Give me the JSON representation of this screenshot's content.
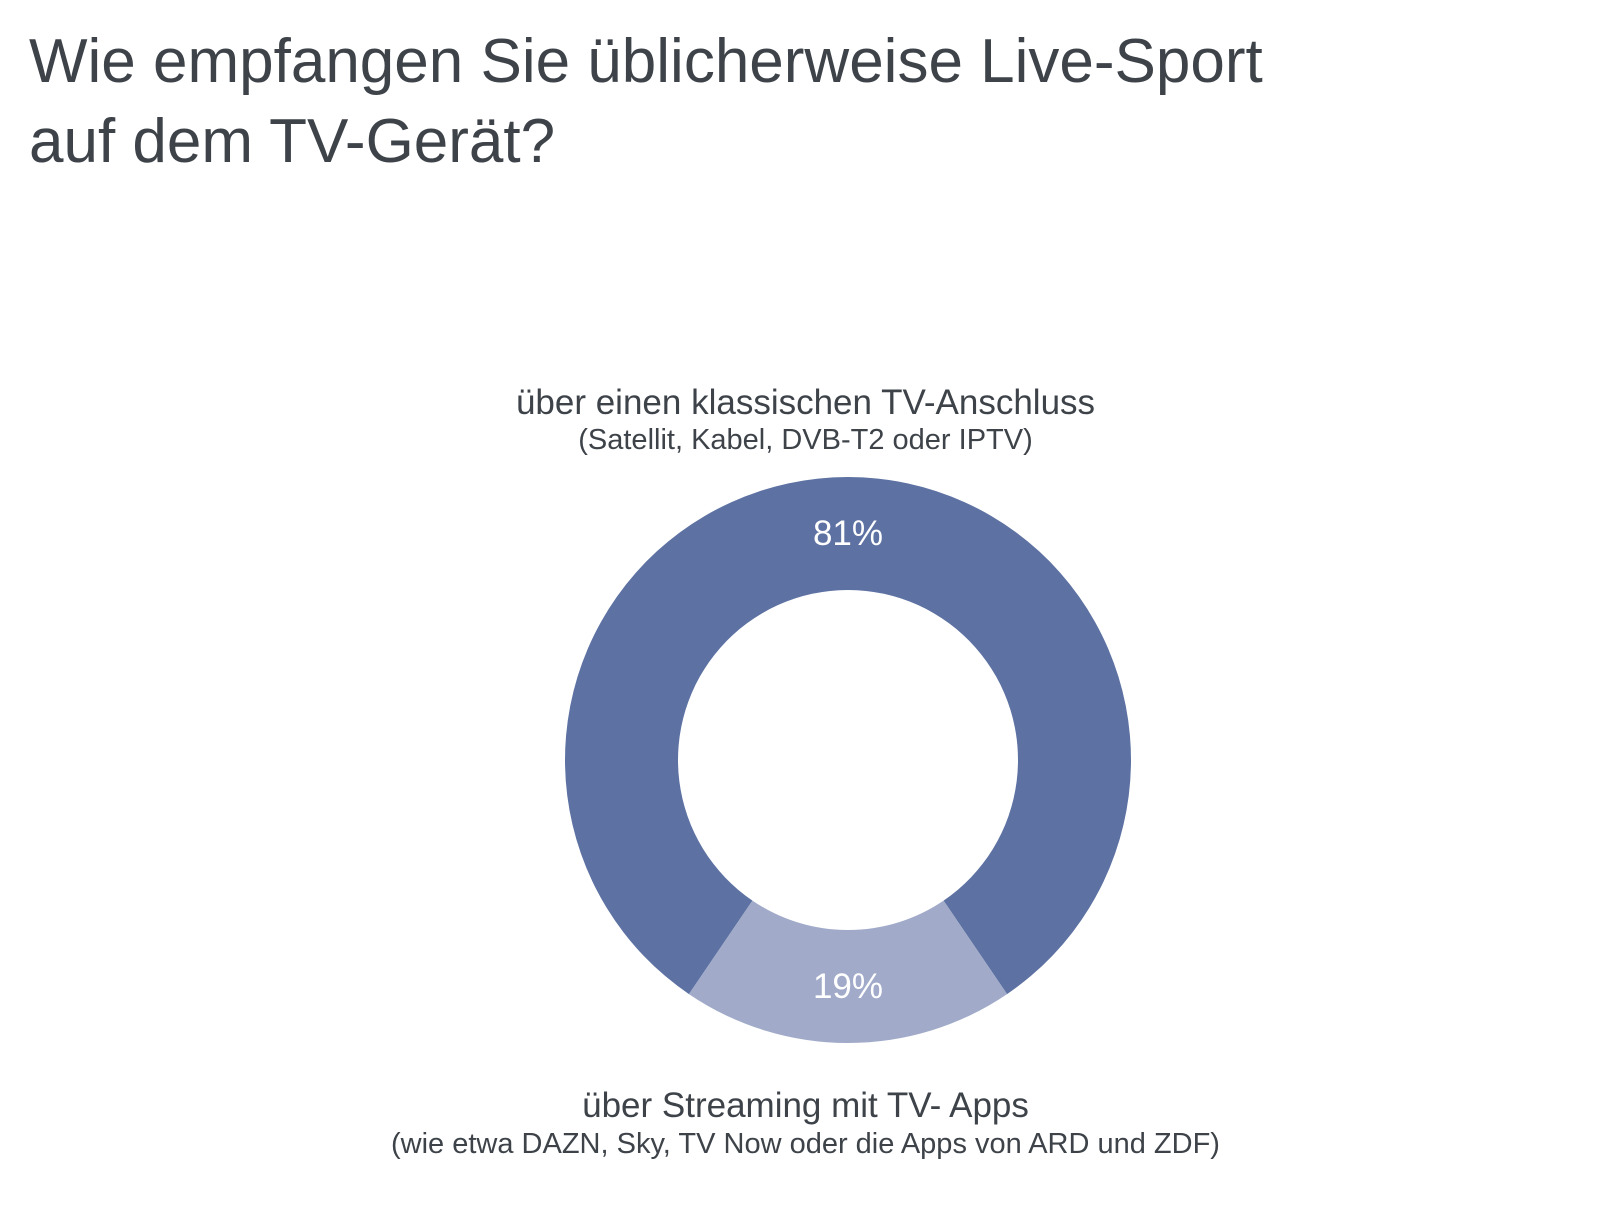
{
  "chart_data": {
    "type": "pie",
    "variant": "donut",
    "title_lines": [
      "Wie empfangen Sie üblicherweise Live-Sport",
      "auf dem TV-Gerät?"
    ],
    "slices": [
      {
        "label": "über einen klassischen TV-Anschluss",
        "sublabel": "(Satellit, Kabel, DVB-T2 oder IPTV)",
        "value": 81,
        "value_label": "81%",
        "color": "#5d72a3"
      },
      {
        "label": "über Streaming mit TV- Apps",
        "sublabel": "(wie etwa DAZN, Sky, TV Now oder die Apps von ARD und ZDF)",
        "value": 19,
        "value_label": "19%",
        "color": "#a1abc9"
      }
    ],
    "value_label_color": "#ffffff"
  }
}
